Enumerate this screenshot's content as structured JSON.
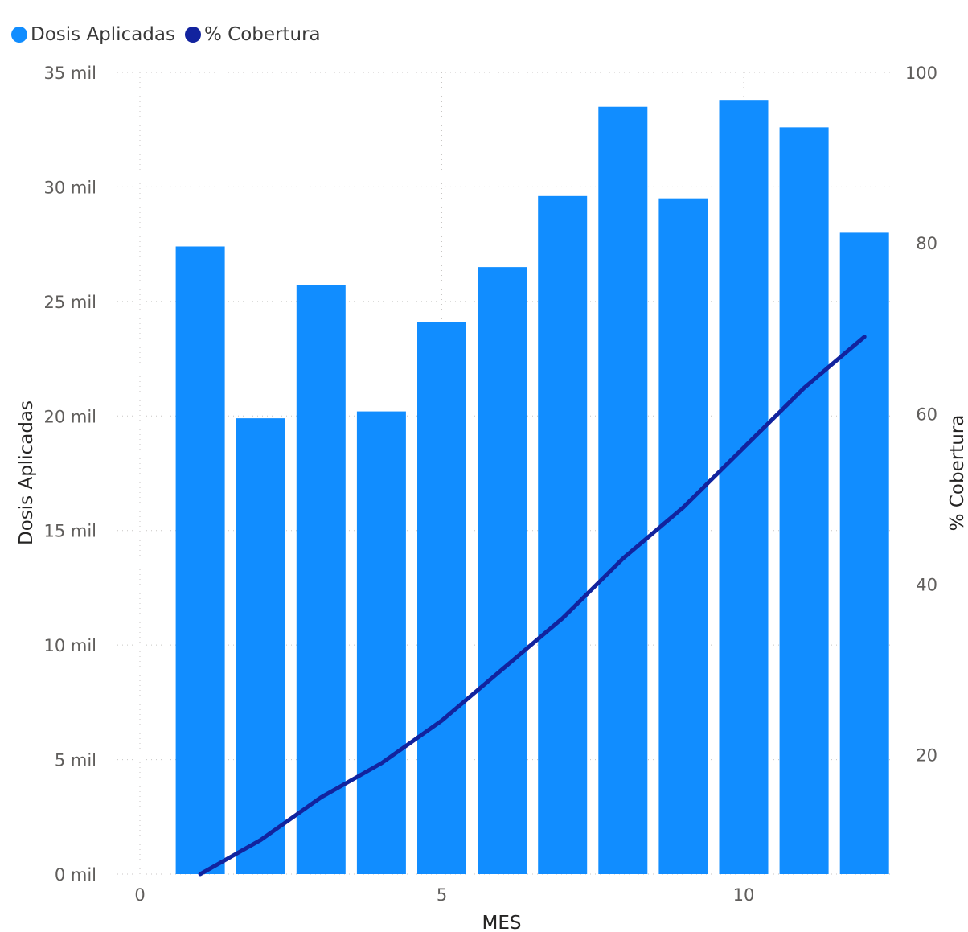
{
  "chart_data": {
    "type": "bar+line",
    "xlabel": "MES",
    "y1label": "Dosis Aplicadas",
    "y2label": "% Cobertura",
    "x": [
      1,
      2,
      3,
      4,
      5,
      6,
      7,
      8,
      9,
      10,
      11,
      12
    ],
    "xlim": [
      0,
      12.5
    ],
    "x_ticks": [
      "0",
      "5",
      "10"
    ],
    "y1lim": [
      0,
      35000
    ],
    "y1_ticks": [
      "0 mil",
      "5 mil",
      "10 mil",
      "15 mil",
      "20 mil",
      "25 mil",
      "30 mil",
      "35 mil"
    ],
    "y2lim": [
      6,
      100
    ],
    "y2_ticks": [
      "20",
      "40",
      "60",
      "80",
      "100"
    ],
    "grid": true,
    "legend": "top-left",
    "series": [
      {
        "name": "Dosis Aplicadas",
        "type": "bar",
        "axis": "left",
        "color": "#118dff",
        "values": [
          27400,
          19900,
          25700,
          20200,
          24100,
          26500,
          29600,
          33500,
          29500,
          33800,
          32600,
          28000
        ]
      },
      {
        "name": "% Cobertura",
        "type": "line",
        "axis": "right",
        "color": "#12239e",
        "values": [
          6,
          10,
          15,
          19,
          24,
          30,
          36,
          43,
          49,
          56,
          63,
          69
        ]
      }
    ]
  }
}
